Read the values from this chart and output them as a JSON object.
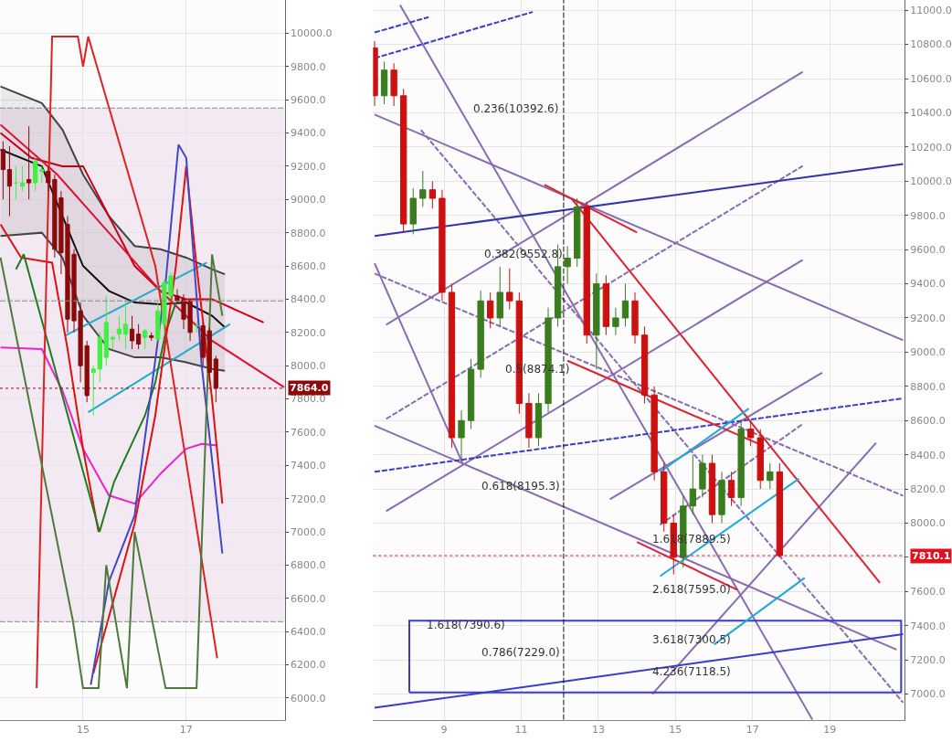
{
  "chart_data": [
    {
      "type": "candlestick",
      "colors": [
        "#8b0a0a",
        "#8b0a0a",
        "#44ee44",
        "#44ee44",
        "#8b0a0a",
        "#44ee44",
        "#44ee44",
        "#8b0a0a",
        "#8b0a0a",
        "#8b0a0a",
        "#8b0a0a",
        "#8b0a0a",
        "#8b0a0a",
        "#8b0a0a",
        "#44ee44",
        "#44ee44",
        "#44ee44",
        "#44ee44",
        "#44ee44",
        "#44ee44",
        "#8b0a0a",
        "#8b0a0a",
        "#44ee44",
        "#8b0a0a",
        "#44ee44",
        "#44ee44",
        "#44ee44",
        "#8b0a0a",
        "#8b0a0a",
        "#8b0a0a",
        "#44ee44",
        "#8b0a0a",
        "#8b0a0a",
        "#8b0a0a"
      ],
      "x": [
        13.45,
        13.575,
        13.7,
        13.825,
        13.95,
        14.075,
        14.2,
        14.325,
        14.45,
        14.575,
        14.7,
        14.825,
        14.95,
        15.075,
        15.2,
        15.325,
        15.45,
        15.575,
        15.7,
        15.825,
        15.95,
        16.075,
        16.2,
        16.325,
        16.45,
        16.575,
        16.7,
        16.825,
        16.95,
        17.075,
        17.2,
        17.325,
        17.45,
        17.575
      ],
      "ohlc": [
        [
          9300,
          9350,
          9000,
          9180
        ],
        [
          9180,
          9320,
          8900,
          9080
        ],
        [
          9100,
          9200,
          9000,
          9100
        ],
        [
          9080,
          9200,
          9050,
          9100
        ],
        [
          9120,
          9440,
          9000,
          9100
        ],
        [
          9100,
          9250,
          9050,
          9230
        ],
        [
          9170,
          9200,
          9100,
          9180
        ],
        [
          9170,
          9200,
          9050,
          9100
        ],
        [
          9120,
          9150,
          8650,
          8700
        ],
        [
          9010,
          9050,
          8550,
          8680
        ],
        [
          8850,
          8900,
          8200,
          8280
        ],
        [
          8670,
          8700,
          8200,
          8270
        ],
        [
          8330,
          8380,
          7900,
          8000
        ],
        [
          8120,
          8150,
          7780,
          7820
        ],
        [
          7960,
          8000,
          7700,
          7980
        ],
        [
          7980,
          8200,
          7900,
          8170
        ],
        [
          8050,
          8420,
          8000,
          8260
        ],
        [
          8160,
          8180,
          8100,
          8170
        ],
        [
          8190,
          8300,
          8150,
          8220
        ],
        [
          8190,
          8400,
          8100,
          8250
        ],
        [
          8220,
          8300,
          8100,
          8150
        ],
        [
          8190,
          8250,
          8100,
          8130
        ],
        [
          8170,
          8220,
          8100,
          8210
        ],
        [
          8180,
          8200,
          8150,
          8170
        ],
        [
          8160,
          8380,
          8150,
          8330
        ],
        [
          8250,
          8520,
          8200,
          8500
        ],
        [
          8420,
          8560,
          8400,
          8540
        ],
        [
          8420,
          8460,
          8380,
          8390
        ],
        [
          8400,
          8430,
          8220,
          8280
        ],
        [
          8390,
          8400,
          8150,
          8200
        ],
        [
          8240,
          8260,
          8200,
          8240
        ],
        [
          8240,
          8260,
          8000,
          8050
        ],
        [
          8210,
          8230,
          7900,
          7960
        ],
        [
          8040,
          8060,
          7780,
          7864
        ]
      ],
      "series": [
        {
          "type": "line",
          "color": "#111111",
          "x": [
            13.4,
            14.2,
            14.6,
            15.0,
            15.5,
            16.0,
            16.5,
            17.0,
            17.5,
            17.75
          ],
          "values": [
            9300,
            9200,
            8900,
            8600,
            8450,
            8380,
            8370,
            8380,
            8300,
            8230
          ],
          "upper": [
            9680,
            9580,
            9420,
            9150,
            8900,
            8720,
            8700,
            8650,
            8580,
            8550
          ],
          "lower": [
            8780,
            8800,
            8650,
            8300,
            8100,
            8050,
            8050,
            8020,
            7980,
            7970
          ]
        },
        {
          "type": "line",
          "color": "#444444",
          "x": [
            13.4,
            14.2,
            14.6,
            15.0,
            15.5,
            16.0,
            16.5,
            17.0,
            17.5,
            17.75
          ],
          "values": [
            9680,
            9580,
            9420,
            9150,
            8900,
            8720,
            8700,
            8650,
            8580,
            8550
          ]
        },
        {
          "type": "line",
          "color": "#444444",
          "x": [
            13.4,
            14.2,
            14.6,
            15.0,
            15.5,
            16.0,
            16.5,
            17.0,
            17.5,
            17.75
          ],
          "values": [
            8780,
            8800,
            8650,
            8300,
            8100,
            8050,
            8050,
            8020,
            7980,
            7970
          ]
        },
        {
          "type": "line",
          "color": "#cc0011",
          "x": [
            13.4,
            14.0,
            14.6,
            15.0,
            15.5,
            16.0,
            16.5,
            17.0,
            17.5,
            18.0,
            18.5
          ],
          "values": [
            9400,
            9250,
            9200,
            9200,
            8900,
            8600,
            8450,
            8400,
            8400,
            8330,
            8260
          ]
        },
        {
          "type": "line",
          "color": "#dd1133",
          "x": [
            13.4,
            14.5,
            15.5,
            16.5,
            17.5,
            18.9
          ],
          "values": [
            9450,
            9150,
            8800,
            8450,
            8150,
            7870
          ]
        },
        {
          "type": "line",
          "color": "#22aacc",
          "x": [
            14.65,
            17.4
          ],
          "values": [
            8180,
            8620
          ]
        },
        {
          "type": "line",
          "color": "#22aacc",
          "x": [
            15.1,
            17.85
          ],
          "values": [
            7720,
            8250
          ]
        },
        {
          "type": "line",
          "color": "#ee22cc",
          "x": [
            13.4,
            14.2,
            14.6,
            15.0,
            15.5,
            16.0,
            16.5,
            17.0,
            17.3,
            17.6
          ],
          "values": [
            8110,
            8100,
            7850,
            7500,
            7220,
            7170,
            7350,
            7500,
            7530,
            7520
          ]
        },
        {
          "type": "line",
          "color": "#e01010",
          "x": [
            13.4,
            13.8,
            14.4,
            14.7,
            15.0,
            15.3
          ],
          "values": [
            8850,
            8650,
            8620,
            8100,
            7500,
            7000
          ]
        },
        {
          "type": "line",
          "color": "#227a22",
          "x": [
            13.7,
            13.85,
            15.32,
            15.6,
            15.9,
            16.2,
            16.4,
            16.6,
            16.8
          ],
          "values": [
            8580,
            8670,
            7000,
            7300,
            7500,
            7700,
            7900,
            8200,
            8380
          ]
        },
        {
          "type": "line",
          "color": "#e01010",
          "x": [
            15.2,
            15.6,
            16.0,
            16.4,
            16.8,
            17.0,
            17.2,
            17.5,
            17.7
          ],
          "values": [
            6150,
            6600,
            7050,
            7700,
            8600,
            9200,
            8600,
            7800,
            7170
          ]
        },
        {
          "type": "line",
          "color": "#4444cc",
          "x": [
            15.15,
            15.5,
            16.0,
            16.6,
            16.85,
            17.0,
            17.3,
            17.7
          ],
          "values": [
            6080,
            6700,
            7100,
            8500,
            9330,
            9250,
            8000,
            6870
          ]
        },
        {
          "type": "line",
          "color": "#dd2222",
          "x": [
            14.1,
            14.4,
            14.9,
            15.0,
            15.1,
            16.4,
            17.6
          ],
          "values": [
            6060,
            9980,
            9980,
            9800,
            9980,
            8600,
            6240
          ]
        },
        {
          "type": "line",
          "color": "#4d7a3a",
          "x": [
            13.4,
            14.8,
            15.0,
            15.3,
            15.45,
            15.85,
            16.0,
            16.6,
            17.2,
            17.5,
            17.7
          ],
          "values": [
            8650,
            6470,
            6060,
            6060,
            6800,
            6060,
            7000,
            6060,
            6060,
            8670,
            8300
          ]
        }
      ],
      "bands": [
        {
          "axis": "y",
          "from": 6460,
          "to": 9550,
          "color": "#f3e9f3"
        }
      ],
      "ref_lines": [
        {
          "axis": "y",
          "value": 9550,
          "color": "#888888",
          "line_style": "dashed"
        },
        {
          "axis": "y",
          "value": 8390,
          "color": "#888888",
          "line_style": "dashed"
        },
        {
          "axis": "y",
          "value": 6460,
          "color": "#888888",
          "line_style": "dashed"
        },
        {
          "axis": "y",
          "value": 7864.0,
          "label": "7864.0",
          "color": "#8b0a0a",
          "line_style": "dotted"
        }
      ],
      "xlim": [
        13.39,
        18.91
      ],
      "xticks": [
        15,
        17
      ],
      "ylim": [
        5870,
        10200
      ],
      "yticks": [
        {
          "value": 6000,
          "label": "6000.0"
        },
        {
          "value": 6200,
          "label": "6200.0"
        },
        {
          "value": 6400,
          "label": "6400.0"
        },
        {
          "value": 6600,
          "label": "6600.0"
        },
        {
          "value": 6800,
          "label": "6800.0"
        },
        {
          "value": 7000,
          "label": "7000.0"
        },
        {
          "value": 7200,
          "label": "7200.0"
        },
        {
          "value": 7400,
          "label": "7400.0"
        },
        {
          "value": 7600,
          "label": "7600.0"
        },
        {
          "value": 7800,
          "label": "7800.0"
        },
        {
          "value": 8000,
          "label": "8000.0"
        },
        {
          "value": 8200,
          "label": "8200.0"
        },
        {
          "value": 8400,
          "label": "8400.0"
        },
        {
          "value": 8600,
          "label": "8600.0"
        },
        {
          "value": 8800,
          "label": "8800.0"
        },
        {
          "value": 9000,
          "label": "9000.0"
        },
        {
          "value": 9200,
          "label": "9200.0"
        },
        {
          "value": 9400,
          "label": "9400.0"
        },
        {
          "value": 9600,
          "label": "9600.0"
        },
        {
          "value": 9800,
          "label": "9800.0"
        },
        {
          "value": 10000,
          "label": "10000.0"
        }
      ],
      "grid": true
    },
    {
      "type": "candlestick",
      "colors": [
        "#cc1111",
        "#3a7d1f",
        "#cc1111",
        "#cc1111",
        "#3a7d1f",
        "#3a7d1f",
        "#cc1111",
        "#cc1111",
        "#cc1111",
        "#3a7d1f",
        "#3a7d1f",
        "#3a7d1f",
        "#cc1111",
        "#3a7d1f",
        "#cc1111",
        "#cc1111",
        "#cc1111",
        "#3a7d1f",
        "#3a7d1f",
        "#3a7d1f",
        "#3a7d1f",
        "#3a7d1f",
        "#cc1111",
        "#3a7d1f",
        "#cc1111",
        "#3a7d1f",
        "#3a7d1f",
        "#cc1111",
        "#cc1111",
        "#cc1111",
        "#cc1111",
        "#cc1111",
        "#3a7d1f",
        "#3a7d1f",
        "#3a7d1f",
        "#cc1111",
        "#3a7d1f",
        "#cc1111",
        "#3a7d1f",
        "#cc1111",
        "#cc1111",
        "#3a7d1f",
        "#cc1111"
      ],
      "x": [
        7.2,
        7.45,
        7.7,
        7.95,
        8.2,
        8.45,
        8.7,
        8.95,
        9.2,
        9.45,
        9.7,
        9.95,
        10.2,
        10.45,
        10.7,
        10.95,
        11.2,
        11.45,
        11.7,
        11.95,
        12.2,
        12.45,
        12.7,
        12.95,
        13.2,
        13.45,
        13.7,
        13.95,
        14.2,
        14.45,
        14.7,
        14.95,
        15.2,
        15.45,
        15.7,
        15.95,
        16.2,
        16.45,
        16.7,
        16.95,
        17.2,
        17.45,
        17.7
      ],
      "ohlc": [
        [
          10780,
          10820,
          10440,
          10500
        ],
        [
          10500,
          10700,
          10450,
          10650
        ],
        [
          10650,
          10690,
          10440,
          10500
        ],
        [
          10500,
          10540,
          9700,
          9750
        ],
        [
          9750,
          9960,
          9690,
          9900
        ],
        [
          9900,
          10060,
          9850,
          9950
        ],
        [
          9950,
          10000,
          9840,
          9900
        ],
        [
          9900,
          9950,
          9300,
          9350
        ],
        [
          9350,
          9400,
          8440,
          8500
        ],
        [
          8500,
          8660,
          8360,
          8600
        ],
        [
          8600,
          8960,
          8550,
          8900
        ],
        [
          8900,
          9360,
          8850,
          9300
        ],
        [
          9300,
          9350,
          9140,
          9200
        ],
        [
          9200,
          9500,
          9150,
          9350
        ],
        [
          9350,
          9490,
          9250,
          9300
        ],
        [
          9300,
          9350,
          8640,
          8700
        ],
        [
          8700,
          8760,
          8440,
          8500
        ],
        [
          8500,
          8760,
          8450,
          8700
        ],
        [
          8700,
          9260,
          8650,
          9200
        ],
        [
          9200,
          9630,
          9150,
          9500
        ],
        [
          9500,
          9620,
          9400,
          9550
        ],
        [
          9550,
          9900,
          9500,
          9850
        ],
        [
          9850,
          9880,
          9050,
          9100
        ],
        [
          9100,
          9460,
          8900,
          9400
        ],
        [
          9400,
          9450,
          9100,
          9150
        ],
        [
          9150,
          9260,
          9100,
          9200
        ],
        [
          9200,
          9400,
          9150,
          9300
        ],
        [
          9300,
          9350,
          9050,
          9100
        ],
        [
          9100,
          9150,
          8700,
          8750
        ],
        [
          8750,
          8800,
          8250,
          8300
        ],
        [
          8300,
          8350,
          7950,
          8000
        ],
        [
          8000,
          8050,
          7700,
          7800
        ],
        [
          7800,
          8160,
          7740,
          8100
        ],
        [
          8100,
          8400,
          8050,
          8200
        ],
        [
          8200,
          8400,
          8150,
          8350
        ],
        [
          8350,
          8400,
          8000,
          8050
        ],
        [
          8050,
          8300,
          8000,
          8250
        ],
        [
          8250,
          8300,
          8100,
          8150
        ],
        [
          8150,
          8600,
          8100,
          8550
        ],
        [
          8550,
          8600,
          8450,
          8500
        ],
        [
          8500,
          8550,
          8200,
          8250
        ],
        [
          8250,
          8350,
          8200,
          8300
        ],
        [
          8300,
          8350,
          7800,
          7810
        ]
      ],
      "series": [
        {
          "type": "line",
          "color": "#8a6bb0",
          "x": [
            7.86,
            18.55
          ],
          "values": [
            11030,
            6850
          ]
        },
        {
          "type": "line",
          "color": "#8a6bb0",
          "x": [
            7.2,
            20.9
          ],
          "values": [
            10390,
            9070
          ]
        },
        {
          "type": "line",
          "color": "#8a6bb0",
          "x": [
            7.2,
            20.73
          ],
          "values": [
            8570,
            7260
          ]
        },
        {
          "type": "line",
          "color": "#8a6bb0",
          "x": [
            7.2,
            9.5
          ],
          "values": [
            9520,
            8340
          ]
        },
        {
          "type": "line",
          "color": "#8a6bb0",
          "x": [
            7.5,
            18.3
          ],
          "values": [
            9160,
            10640
          ]
        },
        {
          "type": "line",
          "color": "#8a6bb0",
          "x": [
            7.5,
            18.3
          ],
          "values": [
            8070,
            9540
          ]
        },
        {
          "type": "line",
          "color": "#8a6bb0",
          "x": [
            13.3,
            18.8
          ],
          "values": [
            8140,
            8880
          ]
        },
        {
          "type": "line",
          "color": "#8a6bb0",
          "x": [
            14.4,
            20.2
          ],
          "values": [
            7000,
            8470
          ]
        },
        {
          "type": "line",
          "color": "#8a6bb0",
          "line_style": "dashed",
          "x": [
            8.4,
            20.9
          ],
          "values": [
            10300,
            6950
          ]
        },
        {
          "type": "line",
          "color": "#8a6bb0",
          "line_style": "dashed",
          "x": [
            7.2,
            20.9
          ],
          "values": [
            9460,
            8160
          ]
        },
        {
          "type": "line",
          "color": "#8a6bb0",
          "line_style": "dashed",
          "x": [
            7.5,
            18.3
          ],
          "values": [
            8610,
            10090
          ]
        },
        {
          "type": "line",
          "color": "#8a6bb0",
          "line_style": "dashed",
          "x": [
            14.6,
            18.3
          ],
          "values": [
            7990,
            8580
          ]
        },
        {
          "type": "line",
          "color": "#3333aa",
          "x": [
            7.2,
            20.9
          ],
          "values": [
            9680,
            10100
          ]
        },
        {
          "type": "line",
          "color": "#3b3bd0",
          "x": [
            7.2,
            20.9
          ],
          "values": [
            6920,
            7350
          ]
        },
        {
          "type": "line",
          "color": "#3b3bd0",
          "line_style": "dashed",
          "x": [
            7.2,
            20.9
          ],
          "values": [
            8300,
            8730
          ]
        },
        {
          "type": "line",
          "color": "#3b3bd0",
          "line_style": "dashed",
          "x": [
            7.2,
            11.3
          ],
          "values": [
            10720,
            10990
          ]
        },
        {
          "type": "line",
          "color": "#3b3bd0",
          "line_style": "dashed",
          "x": [
            7.2,
            8.6
          ],
          "values": [
            10870,
            10960
          ]
        },
        {
          "type": "line",
          "color": "#3b3bd0",
          "x": [
            8.1,
            8.1,
            20.85,
            20.85
          ],
          "values": [
            7010,
            7430,
            7430,
            7010
          ]
        },
        {
          "type": "line",
          "color": "#3b3bd0",
          "x": [
            8.1,
            20.85
          ],
          "values": [
            7010,
            7010
          ]
        },
        {
          "type": "line",
          "color": "#dd2233",
          "x": [
            12.3,
            20.3
          ],
          "values": [
            9900,
            7650
          ]
        },
        {
          "type": "line",
          "color": "#dd2233",
          "x": [
            11.6,
            14.0
          ],
          "values": [
            9980,
            9700
          ]
        },
        {
          "type": "line",
          "color": "#dd2233",
          "x": [
            12.2,
            17.3
          ],
          "values": [
            8950,
            8450
          ]
        },
        {
          "type": "line",
          "color": "#dd2233",
          "x": [
            14.0,
            16.6
          ],
          "values": [
            7890,
            7610
          ]
        },
        {
          "type": "line",
          "color": "#1fa8dd",
          "x": [
            14.6,
            16.9
          ],
          "values": [
            8300,
            8670
          ]
        },
        {
          "type": "line",
          "color": "#1fa8dd",
          "x": [
            14.6,
            18.2
          ],
          "values": [
            7690,
            8260
          ]
        },
        {
          "type": "line",
          "color": "#1fa8dd",
          "x": [
            16.0,
            18.35
          ],
          "values": [
            7290,
            7680
          ]
        }
      ],
      "ref_lines": [
        {
          "axis": "x",
          "value": 12.1,
          "color": "#111111",
          "line_style": "dashed"
        },
        {
          "axis": "y",
          "value": 7810.1,
          "label": "7810.1",
          "color": "#dd1122",
          "line_style": "dotted"
        }
      ],
      "annotations": [
        "0.236(10392.6)",
        "0.382(9552.8)",
        "0.5(8874.1)",
        "0.618(8195.3)",
        "1.618(7889.5)",
        "2.618(7595.0)",
        "1.618(7390.6)",
        "0.786(7229.0)",
        "3.618(7300.5)",
        "4.236(7118.5)"
      ],
      "xlim": [
        7.16,
        20.94
      ],
      "xticks": [
        9,
        11,
        13,
        15,
        17,
        19
      ],
      "ylim": [
        6850,
        11060
      ],
      "yticks": [
        {
          "value": 7000,
          "label": "7000.0"
        },
        {
          "value": 7200,
          "label": "7200.0"
        },
        {
          "value": 7400,
          "label": "7400.0"
        },
        {
          "value": 7600,
          "label": "7600.0"
        },
        {
          "value": 7800,
          "label": null
        },
        {
          "value": 8000,
          "label": "8000.0"
        },
        {
          "value": 8200,
          "label": "8200.0"
        },
        {
          "value": 8400,
          "label": "8400.0"
        },
        {
          "value": 8600,
          "label": "8600.0"
        },
        {
          "value": 8800,
          "label": "8800.0"
        },
        {
          "value": 9000,
          "label": "9000.0"
        },
        {
          "value": 9200,
          "label": "9200.0"
        },
        {
          "value": 9400,
          "label": "9400.0"
        },
        {
          "value": 9600,
          "label": "9600.0"
        },
        {
          "value": 9800,
          "label": "9800.0"
        },
        {
          "value": 10000,
          "label": "10000.0"
        },
        {
          "value": 10200,
          "label": "10200.0"
        },
        {
          "value": 10400,
          "label": "10400.0"
        },
        {
          "value": 10600,
          "label": "10600.0"
        },
        {
          "value": 10800,
          "label": "10800.0"
        },
        {
          "value": 11000,
          "label": "11000.0"
        }
      ],
      "grid": true
    }
  ]
}
